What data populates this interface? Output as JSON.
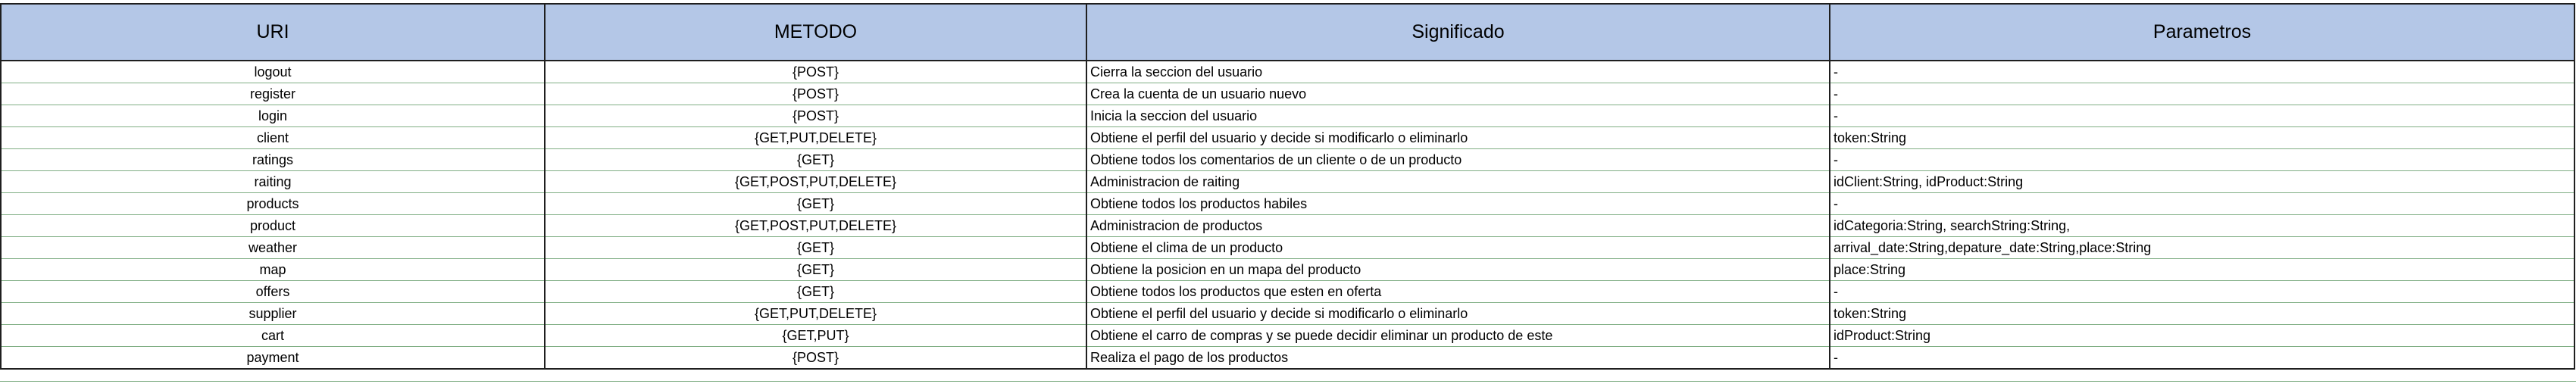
{
  "headers": {
    "uri": "URI",
    "method": "METODO",
    "meaning": "Significado",
    "params": "Parametros"
  },
  "rows": [
    {
      "uri": "logout",
      "method": "{POST}",
      "meaning": "Cierra la seccion del usuario",
      "params": "-"
    },
    {
      "uri": "register",
      "method": "{POST}",
      "meaning": "Crea la cuenta de un usuario nuevo",
      "params": "-"
    },
    {
      "uri": "login",
      "method": "{POST}",
      "meaning": "Inicia la seccion del usuario",
      "params": "-"
    },
    {
      "uri": "client",
      "method": "{GET,PUT,DELETE}",
      "meaning": "Obtiene el perfil del usuario y decide si modificarlo o eliminarlo",
      "params": "token:String"
    },
    {
      "uri": "ratings",
      "method": "{GET}",
      "meaning": "Obtiene todos los comentarios de un cliente o de un producto",
      "params": "-"
    },
    {
      "uri": "raiting",
      "method": "{GET,POST,PUT,DELETE}",
      "meaning": "Administracion de raiting",
      "params": "idClient:String, idProduct:String"
    },
    {
      "uri": "products",
      "method": "{GET}",
      "meaning": "Obtiene todos los productos habiles",
      "params": "-"
    },
    {
      "uri": "product",
      "method": "{GET,POST,PUT,DELETE}",
      "meaning": "Administracion de productos",
      "params": "idCategoria:String, searchString:String,"
    },
    {
      "uri": "weather",
      "method": "{GET}",
      "meaning": "Obtiene el clima de un producto",
      "params": "arrival_date:String,depature_date:String,place:String"
    },
    {
      "uri": "map",
      "method": "{GET}",
      "meaning": "Obtiene la posicion en un mapa del producto",
      "params": "place:String"
    },
    {
      "uri": "offers",
      "method": "{GET}",
      "meaning": "Obtiene todos los productos que esten en oferta",
      "params": "-"
    },
    {
      "uri": "supplier",
      "method": "{GET,PUT,DELETE}",
      "meaning": "Obtiene el perfil del usuario y decide si modificarlo o eliminarlo",
      "params": "token:String"
    },
    {
      "uri": "cart",
      "method": "{GET,PUT}",
      "meaning": "Obtiene el carro de compras y se puede decidir eliminar un producto de este",
      "params": "idProduct:String"
    },
    {
      "uri": "payment",
      "method": "{POST}",
      "meaning": "Realiza el pago de los productos",
      "params": "-"
    }
  ]
}
